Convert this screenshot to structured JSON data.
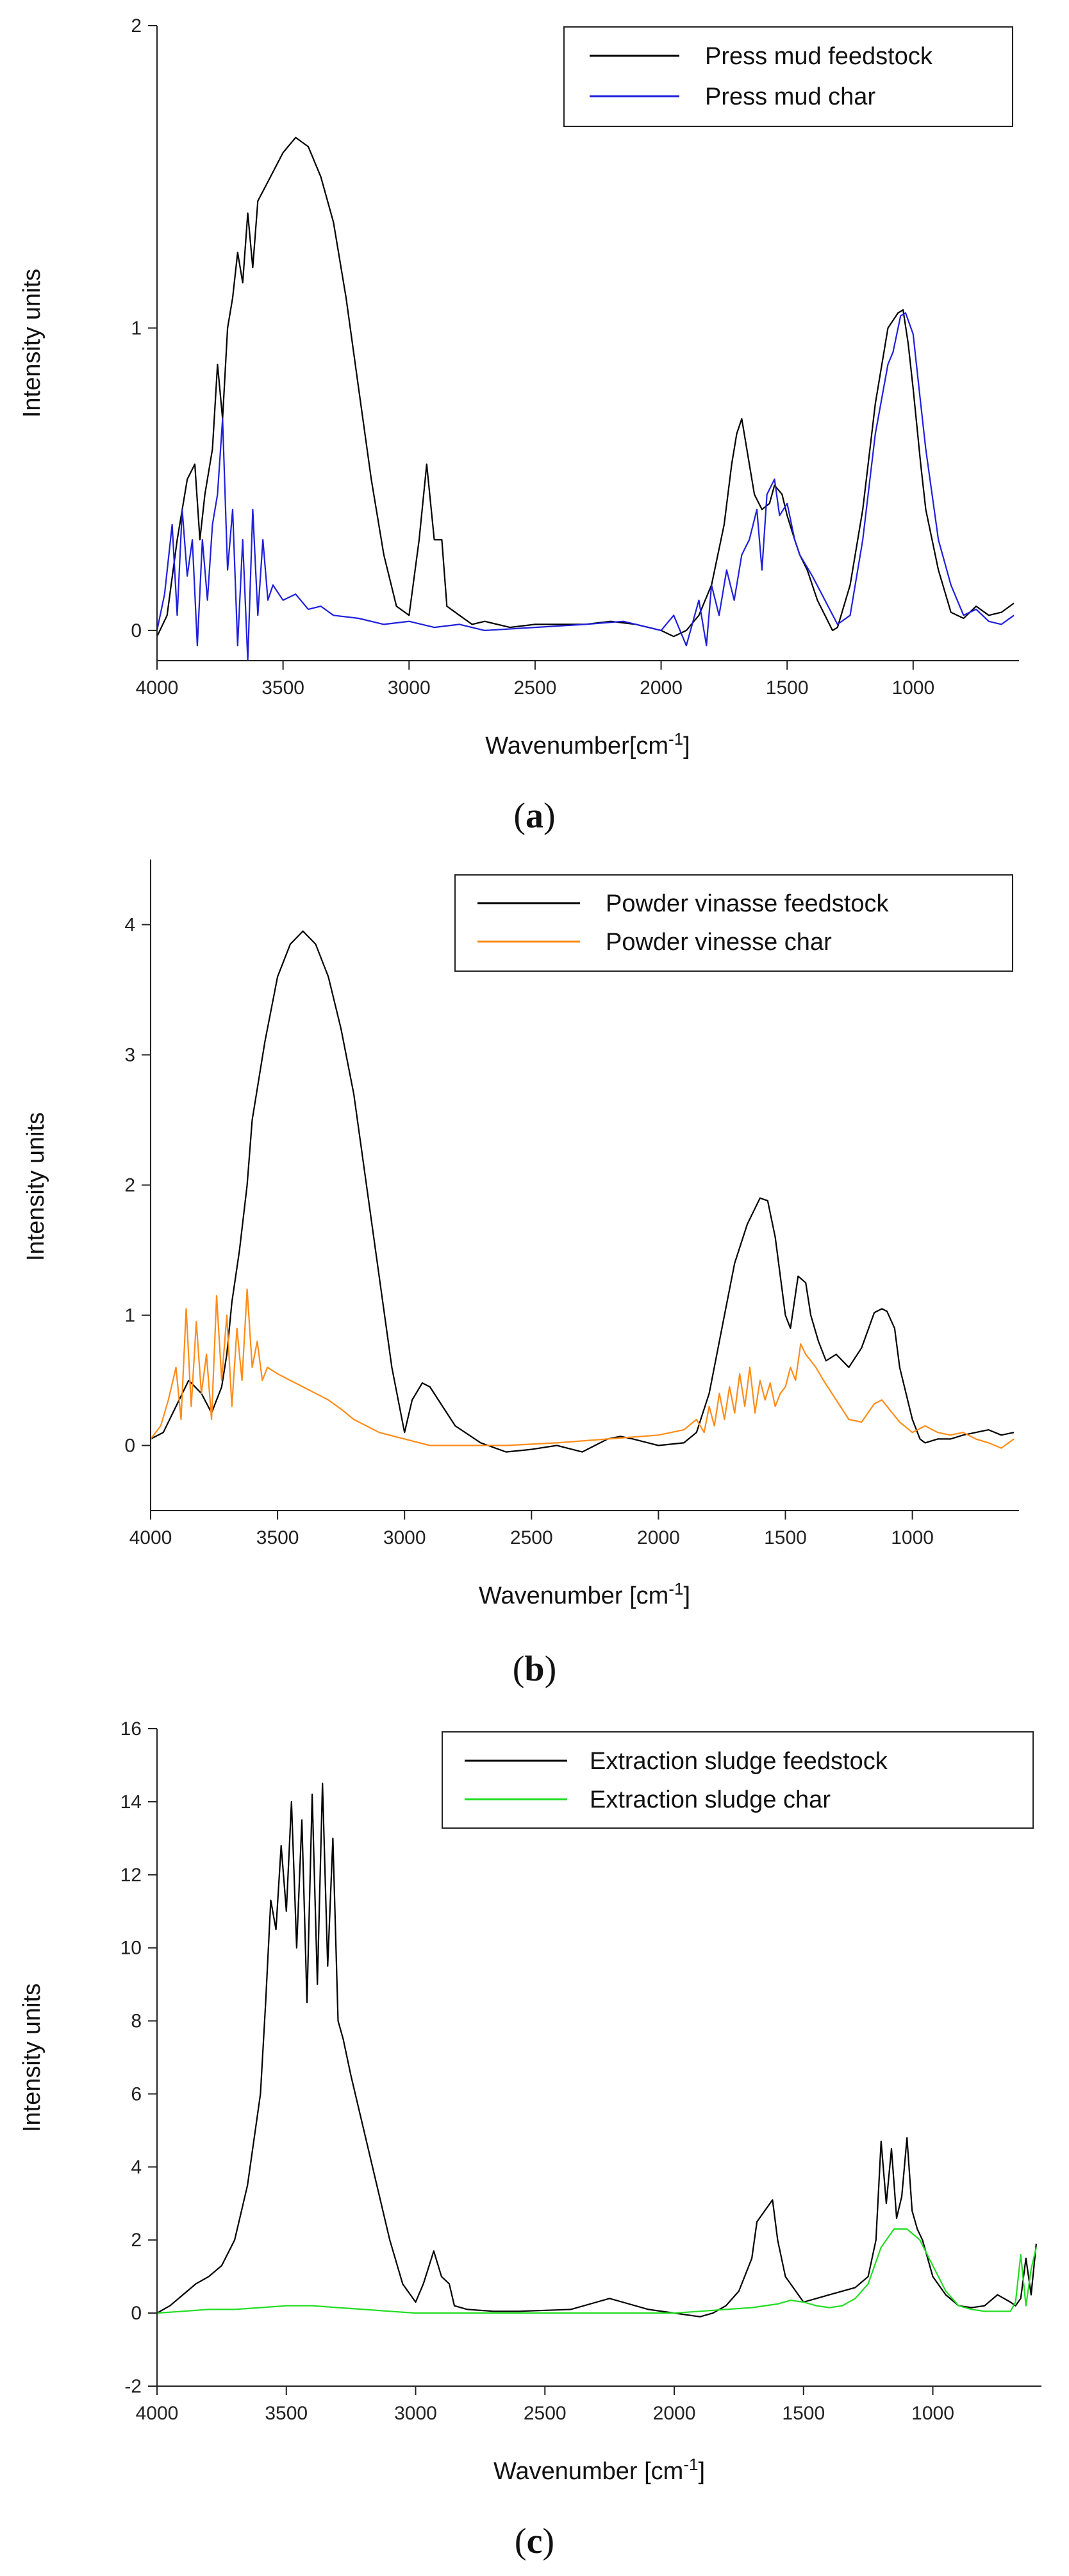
{
  "chart_data": [
    {
      "type": "line",
      "panel": "a",
      "caption_letter": "a",
      "caption_open": "(",
      "caption_close": ")",
      "xlabel": "Wavenumber[cm",
      "xlabel_sup": "-1",
      "xlabel_end": "]",
      "ylabel": "Intensity units",
      "xlim": [
        4000,
        580
      ],
      "ylim": [
        -0.1,
        2.0
      ],
      "xticks": [
        4000,
        3500,
        3000,
        2500,
        2000,
        1500,
        1000
      ],
      "yticks": [
        0,
        1,
        2
      ],
      "legend_position": "top-right",
      "series": [
        {
          "name": "Press mud feedstock",
          "color": "#000000",
          "x": [
            4000,
            3960,
            3920,
            3880,
            3850,
            3830,
            3810,
            3780,
            3760,
            3740,
            3720,
            3700,
            3680,
            3660,
            3640,
            3620,
            3600,
            3550,
            3500,
            3450,
            3400,
            3350,
            3300,
            3250,
            3200,
            3150,
            3100,
            3050,
            3000,
            2960,
            2930,
            2900,
            2870,
            2850,
            2800,
            2750,
            2700,
            2600,
            2500,
            2400,
            2300,
            2200,
            2100,
            2000,
            1950,
            1900,
            1850,
            1800,
            1750,
            1720,
            1700,
            1680,
            1650,
            1630,
            1600,
            1570,
            1550,
            1520,
            1500,
            1470,
            1450,
            1420,
            1400,
            1380,
            1350,
            1320,
            1300,
            1250,
            1200,
            1150,
            1100,
            1060,
            1040,
            1020,
            1000,
            970,
            950,
            900,
            850,
            800,
            750,
            700,
            650,
            600
          ],
          "values": [
            -0.02,
            0.05,
            0.3,
            0.5,
            0.55,
            0.3,
            0.45,
            0.6,
            0.88,
            0.7,
            1.0,
            1.1,
            1.25,
            1.15,
            1.38,
            1.2,
            1.42,
            1.5,
            1.58,
            1.63,
            1.6,
            1.5,
            1.35,
            1.1,
            0.8,
            0.5,
            0.25,
            0.08,
            0.05,
            0.3,
            0.55,
            0.3,
            0.3,
            0.08,
            0.05,
            0.02,
            0.03,
            0.01,
            0.02,
            0.02,
            0.02,
            0.03,
            0.02,
            0.0,
            -0.02,
            0.0,
            0.05,
            0.15,
            0.35,
            0.55,
            0.65,
            0.7,
            0.55,
            0.45,
            0.4,
            0.42,
            0.48,
            0.45,
            0.38,
            0.3,
            0.25,
            0.2,
            0.15,
            0.1,
            0.05,
            0.0,
            0.01,
            0.15,
            0.4,
            0.75,
            1.0,
            1.05,
            1.06,
            0.95,
            0.8,
            0.55,
            0.4,
            0.2,
            0.06,
            0.04,
            0.08,
            0.05,
            0.06,
            0.09
          ]
        },
        {
          "name": "Press mud char",
          "color": "#1f1fdc",
          "x": [
            4000,
            3970,
            3940,
            3920,
            3900,
            3880,
            3860,
            3840,
            3820,
            3800,
            3780,
            3760,
            3740,
            3720,
            3700,
            3680,
            3660,
            3640,
            3620,
            3600,
            3580,
            3560,
            3540,
            3500,
            3450,
            3400,
            3350,
            3300,
            3200,
            3100,
            3000,
            2900,
            2800,
            2700,
            2500,
            2300,
            2150,
            2000,
            1950,
            1900,
            1850,
            1820,
            1800,
            1770,
            1740,
            1710,
            1680,
            1650,
            1620,
            1600,
            1580,
            1550,
            1530,
            1500,
            1470,
            1450,
            1400,
            1350,
            1300,
            1250,
            1200,
            1150,
            1100,
            1080,
            1050,
            1030,
            1000,
            970,
            950,
            900,
            850,
            800,
            750,
            700,
            650,
            600
          ],
          "values": [
            0.0,
            0.12,
            0.35,
            0.05,
            0.4,
            0.18,
            0.3,
            -0.05,
            0.3,
            0.1,
            0.35,
            0.45,
            0.7,
            0.2,
            0.4,
            -0.05,
            0.3,
            -0.1,
            0.4,
            0.05,
            0.3,
            0.1,
            0.15,
            0.1,
            0.12,
            0.07,
            0.08,
            0.05,
            0.04,
            0.02,
            0.03,
            0.01,
            0.02,
            0.0,
            0.01,
            0.02,
            0.03,
            0.0,
            0.05,
            -0.05,
            0.1,
            -0.05,
            0.15,
            0.05,
            0.2,
            0.1,
            0.25,
            0.3,
            0.4,
            0.2,
            0.45,
            0.5,
            0.38,
            0.42,
            0.3,
            0.25,
            0.18,
            0.1,
            0.02,
            0.05,
            0.3,
            0.65,
            0.88,
            0.92,
            1.04,
            1.05,
            0.98,
            0.75,
            0.6,
            0.3,
            0.15,
            0.05,
            0.07,
            0.03,
            0.02,
            0.05
          ]
        }
      ]
    },
    {
      "type": "line",
      "panel": "b",
      "caption_letter": "b",
      "caption_open": "(",
      "caption_close": ")",
      "xlabel": "Wavenumber [cm",
      "xlabel_sup": "-1",
      "xlabel_end": "]",
      "ylabel": "Intensity units",
      "xlim": [
        4000,
        580
      ],
      "ylim": [
        -0.5,
        4.5
      ],
      "xticks": [
        4000,
        3500,
        3000,
        2500,
        2000,
        1500,
        1000
      ],
      "yticks": [
        0,
        1,
        2,
        3,
        4
      ],
      "legend_position": "top-right",
      "series": [
        {
          "name": "Powder vinasse feedstock",
          "color": "#000000",
          "x": [
            4000,
            3950,
            3900,
            3850,
            3800,
            3760,
            3720,
            3700,
            3680,
            3650,
            3620,
            3600,
            3550,
            3500,
            3450,
            3400,
            3350,
            3300,
            3250,
            3200,
            3150,
            3100,
            3050,
            3000,
            2970,
            2930,
            2900,
            2850,
            2800,
            2700,
            2600,
            2500,
            2400,
            2300,
            2200,
            2150,
            2100,
            2000,
            1900,
            1850,
            1800,
            1750,
            1700,
            1650,
            1600,
            1570,
            1540,
            1500,
            1480,
            1450,
            1420,
            1400,
            1370,
            1340,
            1300,
            1250,
            1200,
            1150,
            1120,
            1100,
            1070,
            1050,
            1000,
            970,
            950,
            900,
            850,
            800,
            750,
            700,
            650,
            600
          ],
          "values": [
            0.05,
            0.1,
            0.3,
            0.5,
            0.4,
            0.25,
            0.45,
            0.7,
            1.1,
            1.5,
            2.0,
            2.5,
            3.1,
            3.6,
            3.85,
            3.95,
            3.85,
            3.6,
            3.2,
            2.7,
            2.0,
            1.3,
            0.6,
            0.1,
            0.35,
            0.48,
            0.45,
            0.3,
            0.15,
            0.02,
            -0.05,
            -0.03,
            0.0,
            -0.05,
            0.05,
            0.07,
            0.05,
            0.0,
            0.02,
            0.1,
            0.4,
            0.9,
            1.4,
            1.7,
            1.9,
            1.88,
            1.6,
            1.0,
            0.9,
            1.3,
            1.25,
            1.0,
            0.8,
            0.65,
            0.7,
            0.6,
            0.75,
            1.02,
            1.05,
            1.03,
            0.9,
            0.6,
            0.2,
            0.05,
            0.02,
            0.05,
            0.05,
            0.08,
            0.1,
            0.12,
            0.08,
            0.1
          ]
        },
        {
          "name": "Powder vinesse char",
          "color": "#ff8c1a",
          "x": [
            4000,
            3960,
            3930,
            3900,
            3880,
            3860,
            3840,
            3820,
            3800,
            3780,
            3760,
            3740,
            3720,
            3700,
            3680,
            3660,
            3640,
            3620,
            3600,
            3580,
            3560,
            3540,
            3500,
            3450,
            3400,
            3350,
            3300,
            3250,
            3200,
            3100,
            3000,
            2900,
            2800,
            2600,
            2400,
            2200,
            2000,
            1900,
            1850,
            1820,
            1800,
            1780,
            1760,
            1740,
            1720,
            1700,
            1680,
            1660,
            1640,
            1620,
            1600,
            1580,
            1560,
            1540,
            1520,
            1500,
            1480,
            1460,
            1440,
            1420,
            1400,
            1380,
            1350,
            1300,
            1250,
            1200,
            1150,
            1120,
            1100,
            1050,
            1000,
            950,
            900,
            850,
            800,
            750,
            700,
            650,
            600
          ],
          "values": [
            0.05,
            0.15,
            0.35,
            0.6,
            0.2,
            1.05,
            0.3,
            0.95,
            0.4,
            0.7,
            0.2,
            1.15,
            0.5,
            1.0,
            0.3,
            0.9,
            0.5,
            1.2,
            0.6,
            0.8,
            0.5,
            0.6,
            0.55,
            0.5,
            0.45,
            0.4,
            0.35,
            0.28,
            0.2,
            0.1,
            0.05,
            0.0,
            0.0,
            0.0,
            0.02,
            0.05,
            0.08,
            0.12,
            0.2,
            0.1,
            0.3,
            0.15,
            0.4,
            0.2,
            0.45,
            0.25,
            0.55,
            0.3,
            0.6,
            0.25,
            0.5,
            0.35,
            0.48,
            0.3,
            0.4,
            0.45,
            0.6,
            0.5,
            0.78,
            0.7,
            0.65,
            0.6,
            0.5,
            0.35,
            0.2,
            0.18,
            0.32,
            0.35,
            0.3,
            0.18,
            0.1,
            0.15,
            0.1,
            0.08,
            0.1,
            0.05,
            0.02,
            -0.02,
            0.05
          ]
        }
      ]
    },
    {
      "type": "line",
      "panel": "c",
      "caption_letter": "c",
      "caption_open": "(",
      "caption_close": ")",
      "xlabel": "Wavenumber [cm",
      "xlabel_sup": "-1",
      "xlabel_end": "]",
      "ylabel": "Intensity units",
      "xlim": [
        4000,
        580
      ],
      "ylim": [
        -2,
        16
      ],
      "xticks": [
        4000,
        3500,
        3000,
        2500,
        2000,
        1500,
        1000
      ],
      "yticks": [
        -2,
        0,
        2,
        4,
        6,
        8,
        10,
        12,
        14,
        16
      ],
      "legend_position": "top-right",
      "series": [
        {
          "name": "Extraction sludge feedstock",
          "color": "#000000",
          "x": [
            4000,
            3950,
            3900,
            3850,
            3800,
            3750,
            3700,
            3650,
            3600,
            3580,
            3560,
            3540,
            3520,
            3500,
            3480,
            3460,
            3440,
            3420,
            3400,
            3380,
            3360,
            3340,
            3320,
            3300,
            3280,
            3250,
            3200,
            3150,
            3100,
            3050,
            3000,
            2970,
            2930,
            2900,
            2870,
            2850,
            2800,
            2700,
            2600,
            2400,
            2300,
            2250,
            2200,
            2100,
            2000,
            1900,
            1850,
            1800,
            1750,
            1700,
            1680,
            1650,
            1620,
            1600,
            1570,
            1550,
            1520,
            1500,
            1450,
            1400,
            1350,
            1300,
            1250,
            1220,
            1200,
            1180,
            1160,
            1140,
            1120,
            1100,
            1080,
            1060,
            1040,
            1000,
            950,
            900,
            850,
            800,
            750,
            700,
            680,
            660,
            640,
            620,
            600
          ],
          "values": [
            0.0,
            0.2,
            0.5,
            0.8,
            1.0,
            1.3,
            2.0,
            3.5,
            6.0,
            8.5,
            11.3,
            10.5,
            12.8,
            11.0,
            14.0,
            10.0,
            13.5,
            8.5,
            14.2,
            9.0,
            14.5,
            9.5,
            13.0,
            8.0,
            7.5,
            6.5,
            5.0,
            3.5,
            2.0,
            0.8,
            0.3,
            0.8,
            1.7,
            1.0,
            0.8,
            0.2,
            0.1,
            0.05,
            0.05,
            0.1,
            0.3,
            0.4,
            0.3,
            0.1,
            0.0,
            -0.1,
            0.0,
            0.2,
            0.6,
            1.5,
            2.5,
            2.8,
            3.1,
            2.0,
            1.0,
            0.8,
            0.5,
            0.3,
            0.4,
            0.5,
            0.6,
            0.7,
            1.0,
            2.0,
            4.7,
            3.0,
            4.5,
            2.6,
            3.2,
            4.8,
            2.8,
            2.3,
            2.0,
            1.0,
            0.5,
            0.2,
            0.15,
            0.2,
            0.5,
            0.3,
            0.2,
            0.4,
            1.5,
            0.5,
            1.9
          ]
        },
        {
          "name": "Extraction sludge char",
          "color": "#22dd22",
          "x": [
            4000,
            3900,
            3800,
            3700,
            3600,
            3500,
            3400,
            3300,
            3200,
            3100,
            3000,
            2800,
            2600,
            2400,
            2200,
            2000,
            1900,
            1800,
            1700,
            1600,
            1550,
            1500,
            1450,
            1400,
            1350,
            1300,
            1250,
            1200,
            1150,
            1100,
            1050,
            1000,
            950,
            900,
            850,
            800,
            750,
            700,
            680,
            660,
            640,
            620,
            600
          ],
          "values": [
            0.0,
            0.05,
            0.1,
            0.1,
            0.15,
            0.2,
            0.2,
            0.15,
            0.1,
            0.05,
            0.0,
            0.0,
            0.0,
            0.0,
            0.0,
            0.0,
            0.05,
            0.1,
            0.15,
            0.25,
            0.35,
            0.3,
            0.2,
            0.15,
            0.2,
            0.4,
            0.8,
            1.8,
            2.3,
            2.3,
            2.0,
            1.3,
            0.6,
            0.2,
            0.1,
            0.05,
            0.05,
            0.05,
            0.3,
            1.6,
            0.2,
            1.2,
            1.8
          ]
        }
      ]
    }
  ]
}
